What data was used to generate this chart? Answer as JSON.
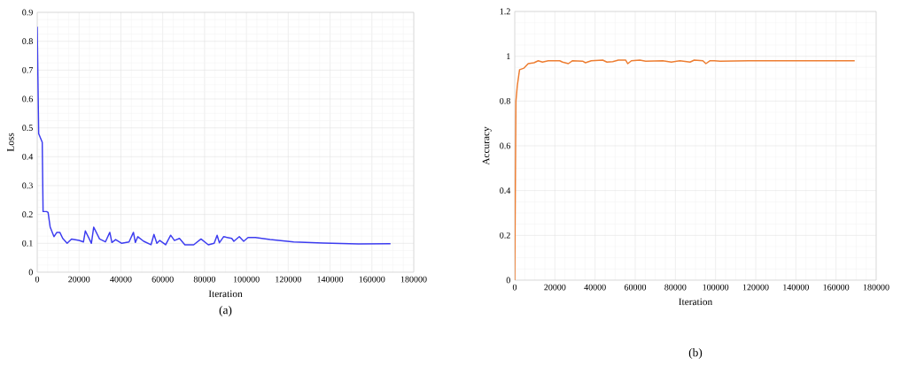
{
  "chart_data": [
    {
      "type": "line",
      "xlabel": "Iteration",
      "ylabel": "Loss",
      "annotations": [
        "(a)"
      ],
      "grid": true,
      "xlim": [
        0,
        180000
      ],
      "xticks": [
        0,
        20000,
        40000,
        60000,
        80000,
        100000,
        120000,
        140000,
        160000,
        180000
      ],
      "ylim": [
        0,
        0.9
      ],
      "yticks": [
        0,
        0.1,
        0.2,
        0.3,
        0.4,
        0.5,
        0.6,
        0.7,
        0.8,
        0.9
      ],
      "series": [
        {
          "color": "#3c3cf0",
          "x": [
            0,
            700,
            2400,
            2800,
            4500,
            5200,
            6200,
            8000,
            9400,
            10800,
            12200,
            14300,
            16400,
            20000,
            22100,
            23000,
            24900,
            25900,
            27000,
            29800,
            32600,
            34700,
            35700,
            37500,
            40400,
            43900,
            46000,
            46900,
            48100,
            50900,
            54400,
            55800,
            57200,
            58600,
            61400,
            63800,
            65600,
            68000,
            70600,
            74800,
            78300,
            81800,
            84600,
            86000,
            87100,
            89100,
            93000,
            94000,
            96600,
            98700,
            100800,
            104300,
            111300,
            122600,
            136600,
            153500,
            168900
          ],
          "values": [
            0.85,
            0.48,
            0.45,
            0.21,
            0.21,
            0.207,
            0.156,
            0.123,
            0.138,
            0.138,
            0.117,
            0.1,
            0.115,
            0.11,
            0.105,
            0.143,
            0.115,
            0.1,
            0.156,
            0.115,
            0.105,
            0.138,
            0.103,
            0.113,
            0.1,
            0.105,
            0.138,
            0.103,
            0.123,
            0.107,
            0.095,
            0.131,
            0.1,
            0.11,
            0.095,
            0.128,
            0.11,
            0.117,
            0.095,
            0.095,
            0.115,
            0.095,
            0.1,
            0.128,
            0.102,
            0.123,
            0.117,
            0.107,
            0.123,
            0.107,
            0.12,
            0.12,
            0.113,
            0.105,
            0.101,
            0.098,
            0.099
          ]
        }
      ]
    },
    {
      "type": "line",
      "xlabel": "Iteration",
      "ylabel": "Accuracy",
      "annotations": [
        "(b)"
      ],
      "grid": true,
      "xlim": [
        0,
        180000
      ],
      "xticks": [
        0,
        20000,
        40000,
        60000,
        80000,
        100000,
        120000,
        140000,
        160000,
        180000
      ],
      "ylim": [
        0,
        1.2
      ],
      "yticks": [
        0,
        0.2,
        0.4,
        0.6,
        0.8,
        1,
        1.2
      ],
      "series": [
        {
          "color": "#ed7d31",
          "x": [
            0,
            600,
            1300,
            2400,
            4600,
            6700,
            9600,
            11700,
            13800,
            16700,
            22400,
            23800,
            26700,
            28800,
            33800,
            35200,
            38100,
            43800,
            45900,
            48800,
            51600,
            55200,
            56300,
            58100,
            62300,
            65200,
            73700,
            78000,
            82300,
            87300,
            89400,
            93700,
            95200,
            97300,
            99400,
            102300,
            116500,
            169300
          ],
          "values": [
            0,
            0.8,
            0.87,
            0.94,
            0.947,
            0.967,
            0.971,
            0.98,
            0.974,
            0.98,
            0.98,
            0.974,
            0.967,
            0.98,
            0.978,
            0.971,
            0.98,
            0.983,
            0.974,
            0.976,
            0.983,
            0.983,
            0.967,
            0.98,
            0.983,
            0.978,
            0.98,
            0.974,
            0.98,
            0.974,
            0.983,
            0.98,
            0.967,
            0.98,
            0.98,
            0.978,
            0.98,
            0.98
          ]
        }
      ]
    }
  ]
}
